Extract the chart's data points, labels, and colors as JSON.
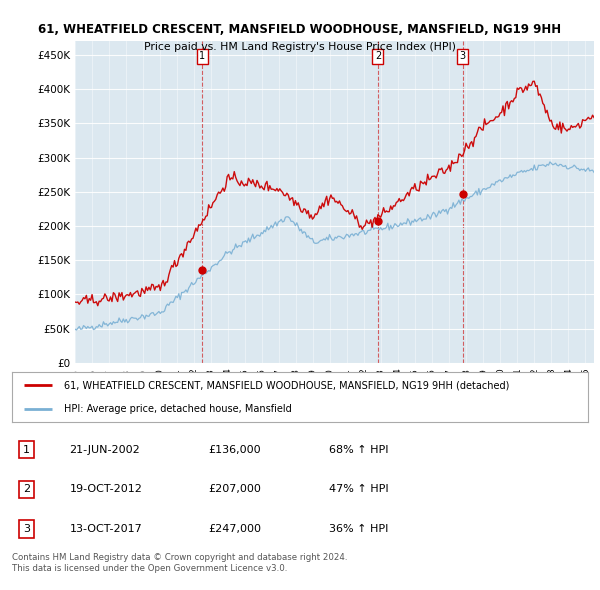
{
  "title1": "61, WHEATFIELD CRESCENT, MANSFIELD WOODHOUSE, MANSFIELD, NG19 9HH",
  "title2": "Price paid vs. HM Land Registry's House Price Index (HPI)",
  "xlim_start": 1995.0,
  "xlim_end": 2025.5,
  "ylim": [
    0,
    470000
  ],
  "yticks": [
    0,
    50000,
    100000,
    150000,
    200000,
    250000,
    300000,
    350000,
    400000,
    450000
  ],
  "ytick_labels": [
    "£0",
    "£50K",
    "£100K",
    "£150K",
    "£200K",
    "£250K",
    "£300K",
    "£350K",
    "£400K",
    "£450K"
  ],
  "sale_dates": [
    2002.47,
    2012.8,
    2017.78
  ],
  "sale_prices": [
    136000,
    207000,
    247000
  ],
  "sale_labels": [
    "1",
    "2",
    "3"
  ],
  "red_color": "#cc0000",
  "blue_color": "#7ab0d4",
  "bg_color": "#dce8f0",
  "legend_label_red": "61, WHEATFIELD CRESCENT, MANSFIELD WOODHOUSE, MANSFIELD, NG19 9HH (detached)",
  "legend_label_blue": "HPI: Average price, detached house, Mansfield",
  "table_data": [
    [
      "1",
      "21-JUN-2002",
      "£136,000",
      "68% ↑ HPI"
    ],
    [
      "2",
      "19-OCT-2012",
      "£207,000",
      "47% ↑ HPI"
    ],
    [
      "3",
      "13-OCT-2017",
      "£247,000",
      "36% ↑ HPI"
    ]
  ],
  "footnote": "Contains HM Land Registry data © Crown copyright and database right 2024.\nThis data is licensed under the Open Government Licence v3.0."
}
